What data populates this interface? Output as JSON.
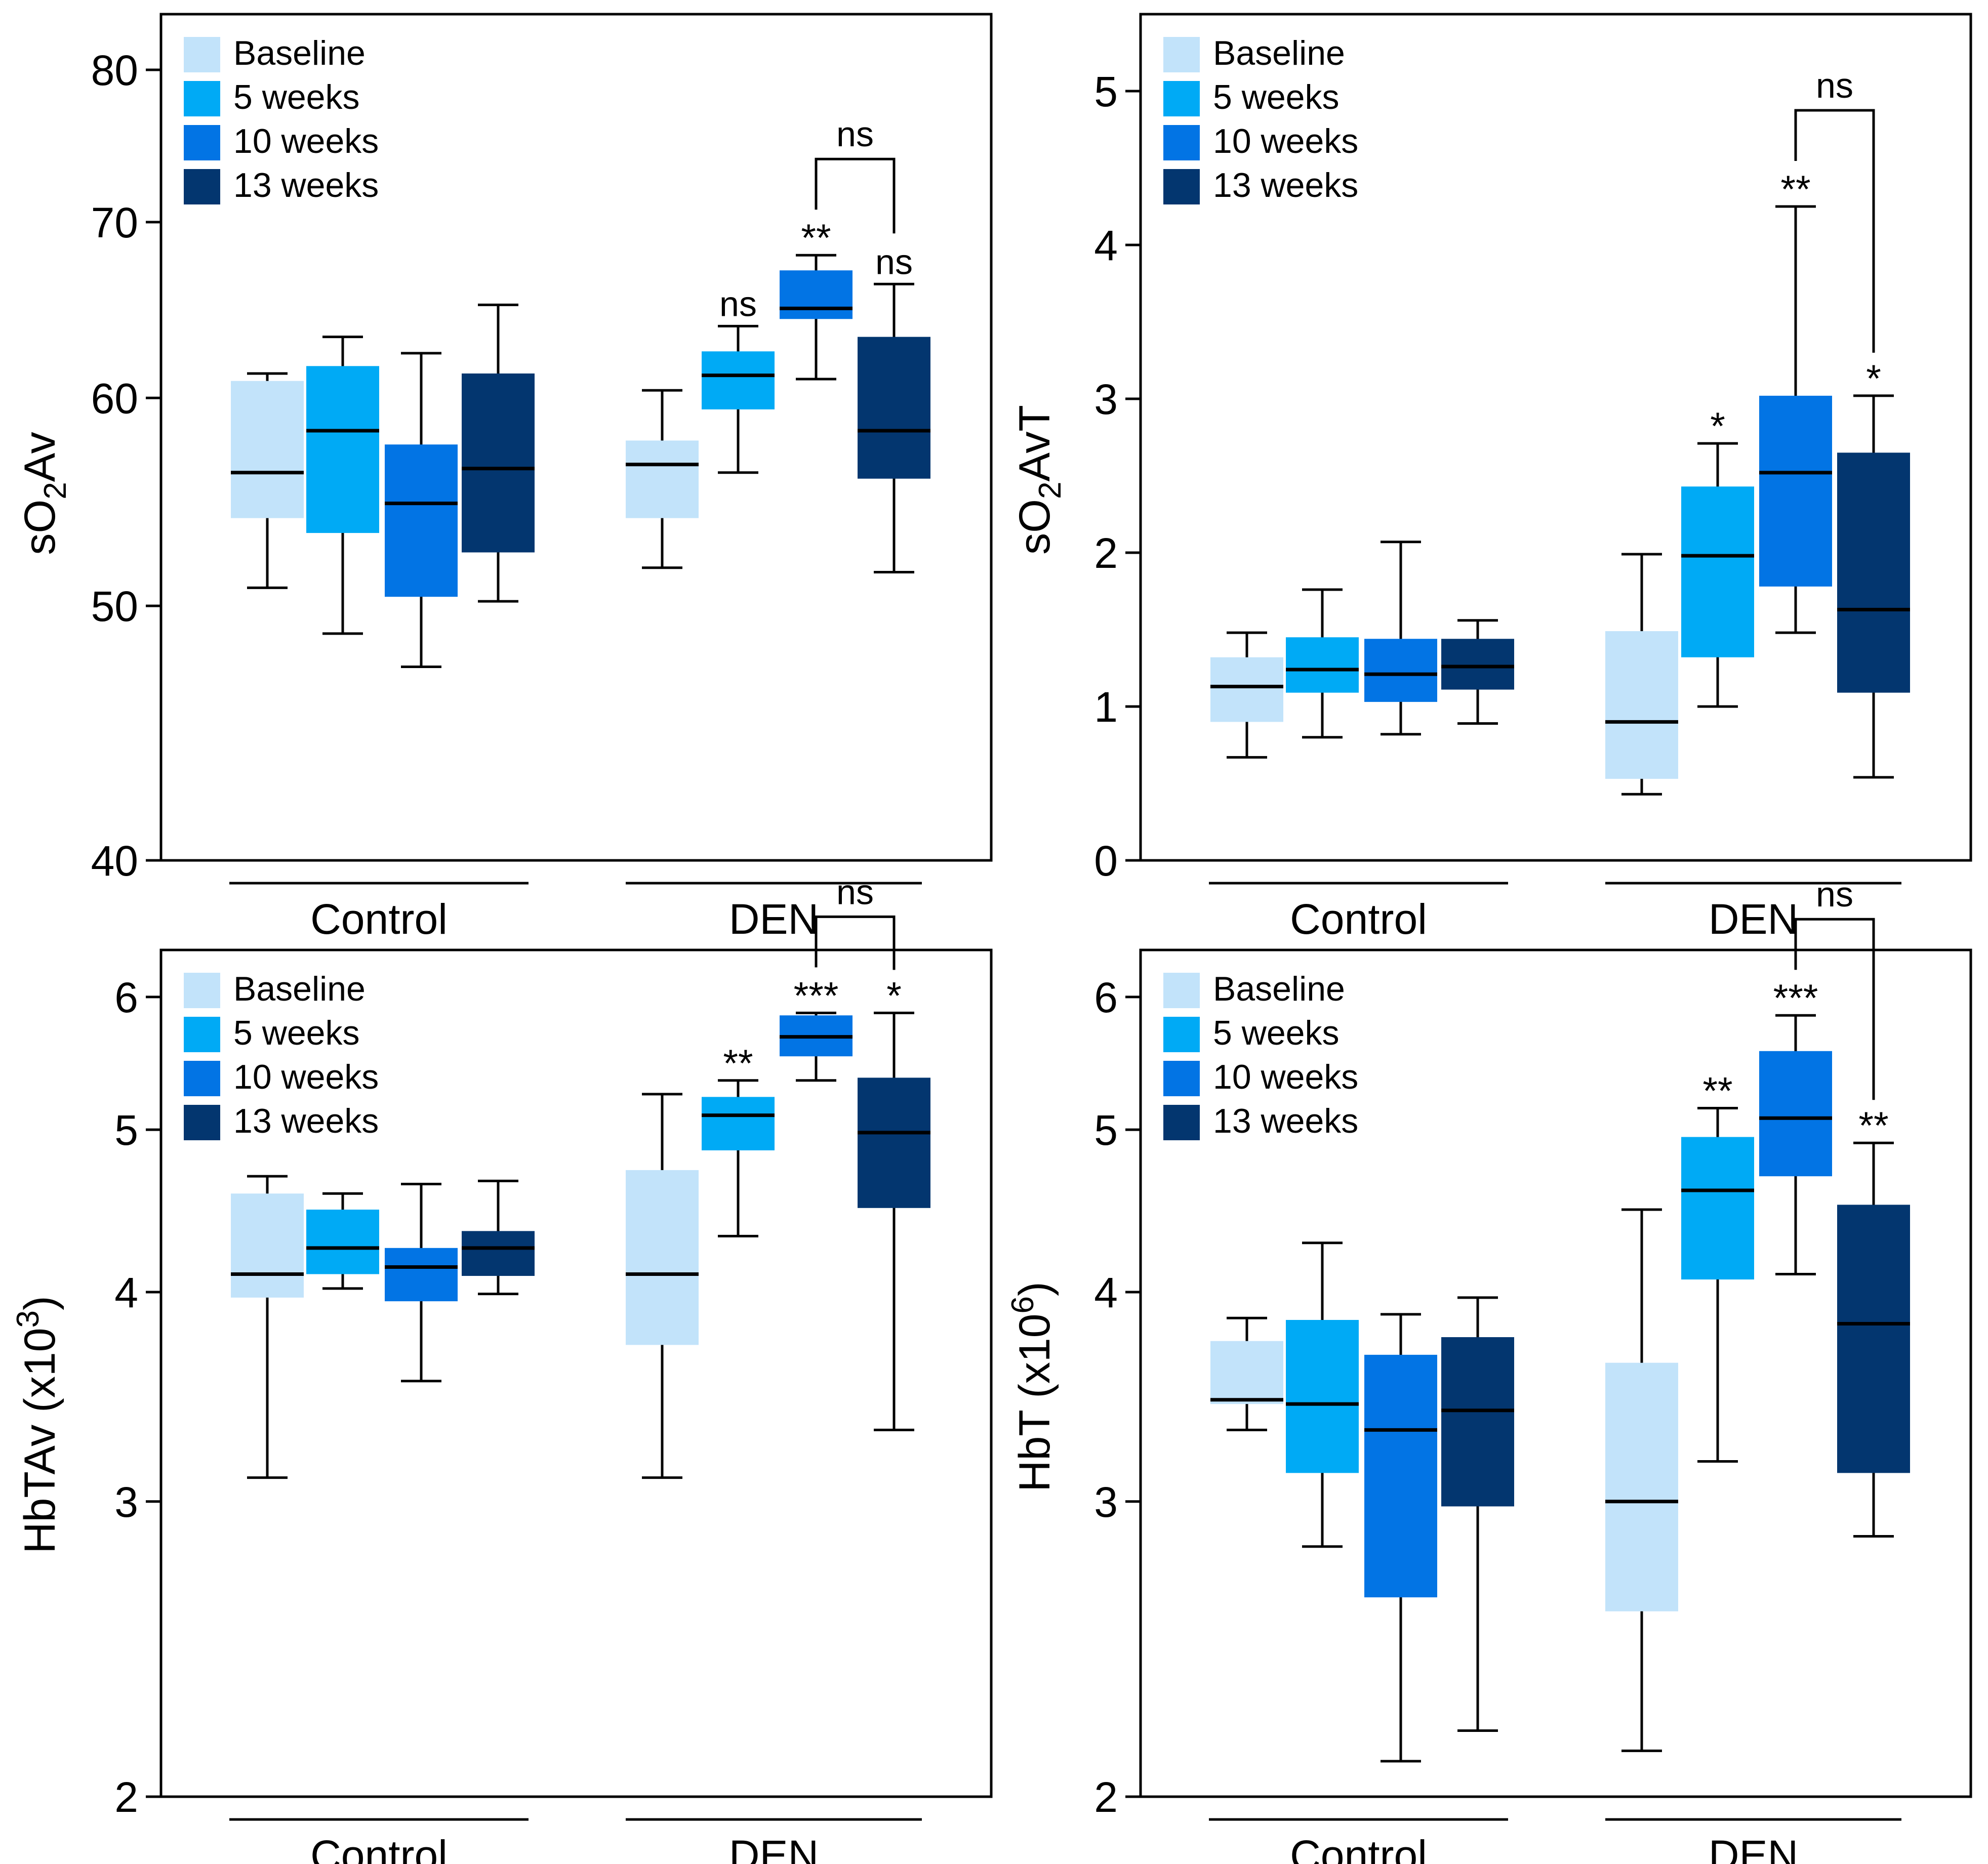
{
  "colors": {
    "Baseline": "#c2e3fa",
    "5 weeks": "#00aaf5",
    "10 weeks": "#0274e4",
    "13 weeks": "#03366f",
    "axis": "#000000"
  },
  "legend_labels": [
    "Baseline",
    "5 weeks",
    "10 weeks",
    "13 weeks"
  ],
  "chart_data": [
    {
      "type": "box",
      "ylabel_main": "sO",
      "ylabel_sub": "2",
      "ylabel_tail": "Av",
      "ylabel_sup": "",
      "ylabel_end": "",
      "ylim": [
        40,
        84
      ],
      "yticks": [
        40,
        50,
        60,
        70,
        80
      ],
      "yscale": "log",
      "groups": [
        "Control",
        "DEN"
      ],
      "boxes": [
        {
          "group": "Control",
          "series": "Baseline",
          "min": 50.8,
          "q1": 54.0,
          "median": 56.2,
          "q3": 60.9,
          "max": 61.3,
          "label": ""
        },
        {
          "group": "Control",
          "series": "5 weeks",
          "min": 48.8,
          "q1": 53.3,
          "median": 58.3,
          "q3": 61.7,
          "max": 63.3,
          "label": ""
        },
        {
          "group": "Control",
          "series": "10 weeks",
          "min": 47.4,
          "q1": 50.4,
          "median": 54.7,
          "q3": 57.6,
          "max": 62.4,
          "label": ""
        },
        {
          "group": "Control",
          "series": "13 weeks",
          "min": 50.2,
          "q1": 52.4,
          "median": 56.4,
          "q3": 61.3,
          "max": 65.1,
          "label": ""
        },
        {
          "group": "DEN",
          "series": "Baseline",
          "min": 51.7,
          "q1": 54.0,
          "median": 56.6,
          "q3": 57.8,
          "max": 60.4,
          "label": ""
        },
        {
          "group": "DEN",
          "series": "5 weeks",
          "min": 56.2,
          "q1": 59.4,
          "median": 61.2,
          "q3": 62.5,
          "max": 63.9,
          "label": "ns"
        },
        {
          "group": "DEN",
          "series": "10 weeks",
          "min": 61.0,
          "q1": 64.3,
          "median": 64.9,
          "q3": 67.1,
          "max": 68.0,
          "label": "**"
        },
        {
          "group": "DEN",
          "series": "13 weeks",
          "min": 51.5,
          "q1": 55.9,
          "median": 58.3,
          "q3": 63.3,
          "max": 66.3,
          "label": "ns"
        }
      ],
      "bracket": {
        "label": "ns"
      }
    },
    {
      "type": "box",
      "ylabel_main": "sO",
      "ylabel_sub": "2",
      "ylabel_tail": "AvT",
      "ylabel_sup": "",
      "ylabel_end": "",
      "ylim": [
        0,
        5.5
      ],
      "yticks": [
        0,
        1,
        2,
        3,
        4,
        5
      ],
      "yscale": "linear",
      "groups": [
        "Control",
        "DEN"
      ],
      "boxes": [
        {
          "group": "Control",
          "series": "Baseline",
          "min": 0.67,
          "q1": 0.9,
          "median": 1.13,
          "q3": 1.32,
          "max": 1.48,
          "label": ""
        },
        {
          "group": "Control",
          "series": "5 weeks",
          "min": 0.8,
          "q1": 1.09,
          "median": 1.24,
          "q3": 1.45,
          "max": 1.76,
          "label": ""
        },
        {
          "group": "Control",
          "series": "10 weeks",
          "min": 0.82,
          "q1": 1.03,
          "median": 1.21,
          "q3": 1.44,
          "max": 2.07,
          "label": ""
        },
        {
          "group": "Control",
          "series": "13 weeks",
          "min": 0.89,
          "q1": 1.11,
          "median": 1.26,
          "q3": 1.44,
          "max": 1.56,
          "label": ""
        },
        {
          "group": "DEN",
          "series": "Baseline",
          "min": 0.43,
          "q1": 0.53,
          "median": 0.9,
          "q3": 1.49,
          "max": 1.99,
          "label": ""
        },
        {
          "group": "DEN",
          "series": "5 weeks",
          "min": 1.0,
          "q1": 1.32,
          "median": 1.98,
          "q3": 2.43,
          "max": 2.71,
          "label": "*"
        },
        {
          "group": "DEN",
          "series": "10 weeks",
          "min": 1.48,
          "q1": 1.78,
          "median": 2.52,
          "q3": 3.02,
          "max": 4.25,
          "label": "**"
        },
        {
          "group": "DEN",
          "series": "13 weeks",
          "min": 0.54,
          "q1": 1.09,
          "median": 1.63,
          "q3": 2.65,
          "max": 3.02,
          "label": "*"
        }
      ],
      "bracket": {
        "label": "ns"
      }
    },
    {
      "type": "box",
      "ylabel_main": "HbTAv (x10",
      "ylabel_sub": "",
      "ylabel_tail": "",
      "ylabel_sup": "3",
      "ylabel_end": ")",
      "ylim": [
        2,
        6.4
      ],
      "yticks": [
        2,
        3,
        4,
        5,
        6
      ],
      "yscale": "log",
      "groups": [
        "Control",
        "DEN"
      ],
      "boxes": [
        {
          "group": "Control",
          "series": "Baseline",
          "min": 3.1,
          "q1": 3.97,
          "median": 4.1,
          "q3": 4.58,
          "max": 4.69,
          "label": ""
        },
        {
          "group": "Control",
          "series": "5 weeks",
          "min": 4.02,
          "q1": 4.1,
          "median": 4.25,
          "q3": 4.48,
          "max": 4.58,
          "label": ""
        },
        {
          "group": "Control",
          "series": "10 weeks",
          "min": 3.54,
          "q1": 3.95,
          "median": 4.14,
          "q3": 4.25,
          "max": 4.64,
          "label": ""
        },
        {
          "group": "Control",
          "series": "13 weeks",
          "min": 3.99,
          "q1": 4.09,
          "median": 4.25,
          "q3": 4.35,
          "max": 4.66,
          "label": ""
        },
        {
          "group": "DEN",
          "series": "Baseline",
          "min": 3.1,
          "q1": 3.72,
          "median": 4.1,
          "q3": 4.73,
          "max": 5.25,
          "label": ""
        },
        {
          "group": "DEN",
          "series": "5 weeks",
          "min": 4.32,
          "q1": 4.86,
          "median": 5.1,
          "q3": 5.23,
          "max": 5.35,
          "label": "**"
        },
        {
          "group": "DEN",
          "series": "10 weeks",
          "min": 5.35,
          "q1": 5.53,
          "median": 5.68,
          "q3": 5.85,
          "max": 5.87,
          "label": "***"
        },
        {
          "group": "DEN",
          "series": "13 weeks",
          "min": 3.31,
          "q1": 4.49,
          "median": 4.98,
          "q3": 5.37,
          "max": 5.87,
          "label": "*"
        }
      ],
      "bracket": {
        "label": "ns"
      }
    },
    {
      "type": "box",
      "ylabel_main": "HbT (x10",
      "ylabel_sub": "",
      "ylabel_tail": "",
      "ylabel_sup": "6",
      "ylabel_end": ")",
      "ylim": [
        2,
        6.4
      ],
      "yticks": [
        2,
        3,
        4,
        5,
        6
      ],
      "yscale": "log",
      "groups": [
        "Control",
        "DEN"
      ],
      "boxes": [
        {
          "group": "Control",
          "series": "Baseline",
          "min": 3.31,
          "q1": 3.43,
          "median": 3.45,
          "q3": 3.74,
          "max": 3.86,
          "label": ""
        },
        {
          "group": "Control",
          "series": "5 weeks",
          "min": 2.82,
          "q1": 3.12,
          "median": 3.43,
          "q3": 3.85,
          "max": 4.28,
          "label": ""
        },
        {
          "group": "Control",
          "series": "10 weeks",
          "min": 2.1,
          "q1": 2.63,
          "median": 3.31,
          "q3": 3.67,
          "max": 3.88,
          "label": ""
        },
        {
          "group": "Control",
          "series": "13 weeks",
          "min": 2.19,
          "q1": 2.98,
          "median": 3.4,
          "q3": 3.76,
          "max": 3.97,
          "label": ""
        },
        {
          "group": "DEN",
          "series": "Baseline",
          "min": 2.13,
          "q1": 2.58,
          "median": 3.0,
          "q3": 3.63,
          "max": 4.48,
          "label": ""
        },
        {
          "group": "DEN",
          "series": "5 weeks",
          "min": 3.17,
          "q1": 4.07,
          "median": 4.6,
          "q3": 4.95,
          "max": 5.15,
          "label": "**"
        },
        {
          "group": "DEN",
          "series": "10 weeks",
          "min": 4.1,
          "q1": 4.69,
          "median": 5.08,
          "q3": 5.57,
          "max": 5.85,
          "label": "***"
        },
        {
          "group": "DEN",
          "series": "13 weeks",
          "min": 2.86,
          "q1": 3.12,
          "median": 3.83,
          "q3": 4.51,
          "max": 4.91,
          "label": "**"
        }
      ],
      "bracket": {
        "label": "ns"
      }
    }
  ]
}
